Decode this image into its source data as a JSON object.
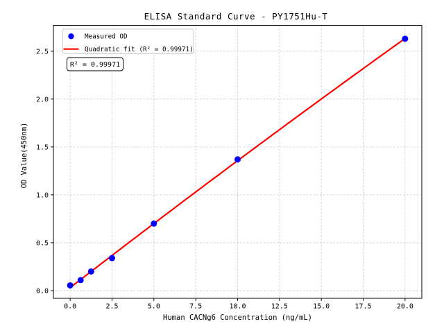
{
  "figure": {
    "background": "#ffffff"
  },
  "chart_data": {
    "type": "scatter",
    "title": "ELISA Standard Curve - PY1751Hu-T",
    "xlabel": "Human CACNg6 Concentration (ng/mL)",
    "ylabel": "OD Value(450nm)",
    "xlim": [
      -1.0,
      21.0
    ],
    "ylim": [
      -0.08,
      2.77
    ],
    "x_ticks": [
      0.0,
      2.5,
      5.0,
      7.5,
      10.0,
      12.5,
      15.0,
      17.5,
      20.0
    ],
    "x_tick_labels": [
      "0.0",
      "2.5",
      "5.0",
      "7.5",
      "10.0",
      "12.5",
      "15.0",
      "17.5",
      "20.0"
    ],
    "y_ticks": [
      0.0,
      0.5,
      1.0,
      1.5,
      2.0,
      2.5
    ],
    "y_tick_labels": [
      "0.0",
      "0.5",
      "1.0",
      "1.5",
      "2.0",
      "2.5"
    ],
    "grid": true,
    "grid_color": "#cccccc",
    "spine_color": "#000000",
    "series": [
      {
        "name": "Measured OD",
        "type": "scatter",
        "marker": "circle",
        "color": "#0000ff",
        "x": [
          0.0,
          0.625,
          1.25,
          2.5,
          5.0,
          10.0,
          20.0
        ],
        "y": [
          0.055,
          0.11,
          0.2,
          0.34,
          0.7,
          1.37,
          2.63
        ]
      },
      {
        "name": "Quadratic fit (R² = 0.99971)",
        "type": "line",
        "fit": "quadratic",
        "color": "#ff0000",
        "x_range": [
          0.0,
          20.0
        ]
      }
    ],
    "legend": {
      "position": "upper left"
    },
    "annotation": {
      "text": "R² = 0.99971"
    },
    "r_squared": 0.99971
  }
}
